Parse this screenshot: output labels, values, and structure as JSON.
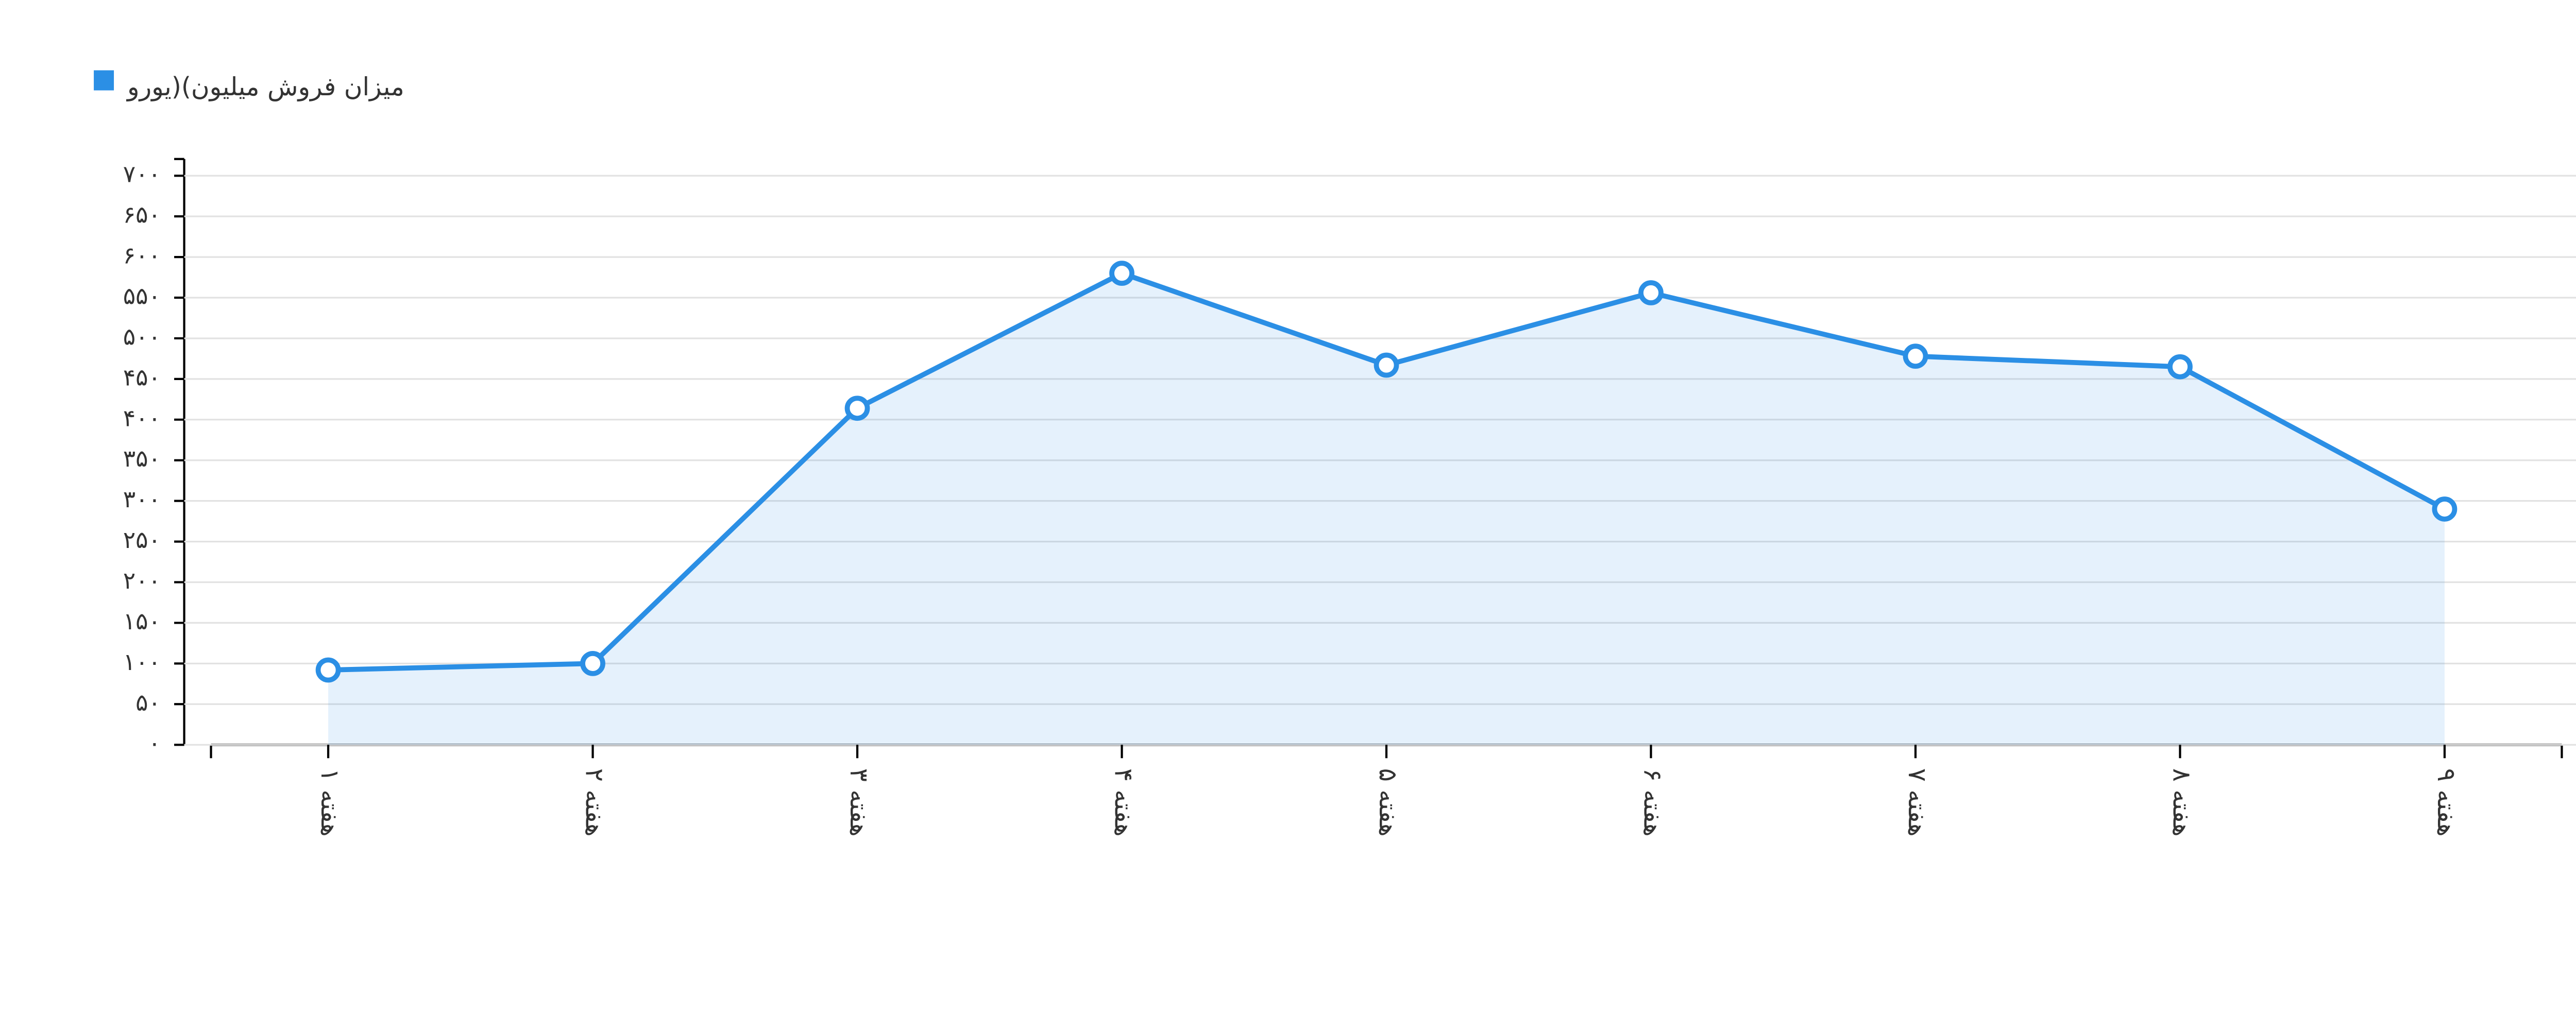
{
  "chart_data": {
    "type": "area",
    "categories": [
      "هفته ۱",
      "هفته ۲",
      "هفته ۳",
      "هفته ۴",
      "هفته ۵",
      "هفته ۶",
      "هفته ۷",
      "هفته ۸",
      "هفته ۹"
    ],
    "series": [
      {
        "name": "میزان فروش میلیون)(یورو",
        "color": "#2b8fe5",
        "values": [
          92,
          100,
          414,
          580,
          467,
          556,
          478,
          465,
          290
        ]
      }
    ],
    "ylim": [
      0,
      700
    ],
    "yticks": [
      {
        "value": 0,
        "label": "۰"
      },
      {
        "value": 50,
        "label": "۵۰"
      },
      {
        "value": 100,
        "label": "۱۰۰"
      },
      {
        "value": 150,
        "label": "۱۵۰"
      },
      {
        "value": 200,
        "label": "۲۰۰"
      },
      {
        "value": 250,
        "label": "۲۵۰"
      },
      {
        "value": 300,
        "label": "۳۰۰"
      },
      {
        "value": 350,
        "label": "۳۵۰"
      },
      {
        "value": 400,
        "label": "۴۰۰"
      },
      {
        "value": 450,
        "label": "۴۵۰"
      },
      {
        "value": 500,
        "label": "۵۰۰"
      },
      {
        "value": 550,
        "label": "۵۵۰"
      },
      {
        "value": 600,
        "label": "۶۰۰"
      },
      {
        "value": 650,
        "label": "۶۵۰"
      },
      {
        "value": 700,
        "label": "۷۰۰"
      }
    ],
    "grid": true,
    "legend": "top-left"
  }
}
